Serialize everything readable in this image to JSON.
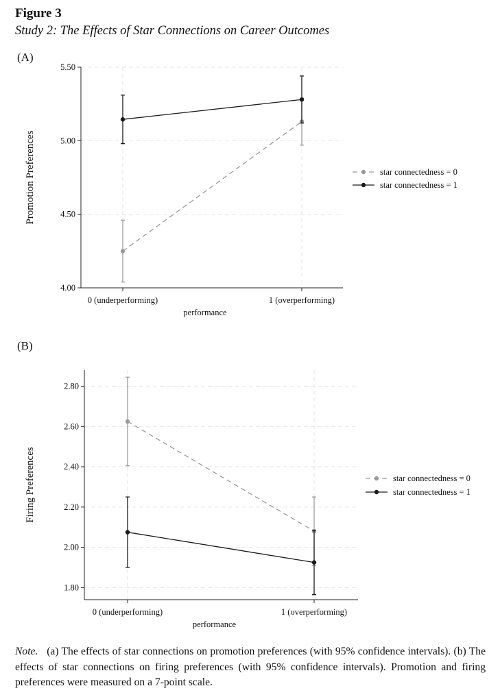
{
  "figure": {
    "label": "Figure 3",
    "title": "Study 2: The Effects of Star Connections on Career Outcomes"
  },
  "note": {
    "label": "Note.",
    "text": "(a) The effects of star connections on promotion preferences (with 95% confidence intervals). (b) The effects of star connections on firing preferences (with 95% confidence intervals). Promotion and firing preferences were measured on a 7-point scale."
  },
  "colors": {
    "series0": "#9a9a9a",
    "series1": "#1a1a1a",
    "grid": "#e6e6e6",
    "axis": "#222222"
  },
  "chart_data": [
    {
      "panel": "(A)",
      "type": "line",
      "xlabel": "performance",
      "ylabel": "Promotion Preferences",
      "categories": [
        "0 (underperforming)",
        "1 (overperforming)"
      ],
      "ylim": [
        4.0,
        5.5
      ],
      "yticks": [
        4.0,
        4.5,
        5.0,
        5.5
      ],
      "ytick_labels": [
        "4.00",
        "4.50",
        "5.00",
        "5.50"
      ],
      "grid": true,
      "legend_position": "right",
      "series": [
        {
          "name": "star connectedness = 0",
          "style": "dashed",
          "values": [
            4.25,
            5.13
          ],
          "ci_low": [
            4.04,
            4.97
          ],
          "ci_high": [
            4.46,
            5.29
          ]
        },
        {
          "name": "star connectedness = 1",
          "style": "solid",
          "values": [
            5.145,
            5.28
          ],
          "ci_low": [
            4.98,
            5.12
          ],
          "ci_high": [
            5.31,
            5.44
          ]
        }
      ]
    },
    {
      "panel": "(B)",
      "type": "line",
      "xlabel": "performance",
      "ylabel": "Firing Preferences",
      "categories": [
        "0 (underperforming)",
        "1 (overperforming)"
      ],
      "ylim": [
        1.74,
        2.88
      ],
      "yticks": [
        1.8,
        2.0,
        2.2,
        2.4,
        2.6,
        2.8
      ],
      "ytick_labels": [
        "1.80",
        "2.00",
        "2.20",
        "2.40",
        "2.60",
        "2.80"
      ],
      "grid": true,
      "legend_position": "right",
      "series": [
        {
          "name": "star connectedness = 0",
          "style": "dashed",
          "values": [
            2.625,
            2.08
          ],
          "ci_low": [
            2.405,
            1.91
          ],
          "ci_high": [
            2.845,
            2.25
          ]
        },
        {
          "name": "star connectedness = 1",
          "style": "solid",
          "values": [
            2.075,
            1.925
          ],
          "ci_low": [
            1.9,
            1.765
          ],
          "ci_high": [
            2.25,
            2.085
          ]
        }
      ]
    }
  ]
}
